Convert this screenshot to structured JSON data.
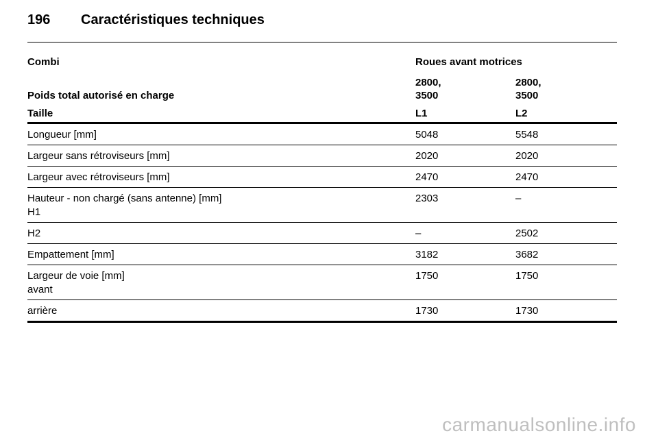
{
  "header": {
    "page_number": "196",
    "title": "Caractéristiques techniques"
  },
  "table": {
    "section": "Combi",
    "drive": "Roues avant motrices",
    "weight_label": "Poids total autorisé en charge",
    "weight_l1_line1": "2800,",
    "weight_l1_line2": "3500",
    "weight_l2_line1": "2800,",
    "weight_l2_line2": "3500",
    "size_label": "Taille",
    "size_l1": "L1",
    "size_l2": "L2",
    "rows": [
      {
        "label": "Longueur [mm]",
        "l1": "5048",
        "l2": "5548"
      },
      {
        "label": "Largeur sans rétroviseurs [mm]",
        "l1": "2020",
        "l2": "2020"
      },
      {
        "label": "Largeur avec rétroviseurs [mm]",
        "l1": "2470",
        "l2": "2470"
      },
      {
        "label": "Hauteur - non chargé (sans antenne) [mm]",
        "sublabel": "H1",
        "l1": "2303",
        "l2": "–"
      },
      {
        "label": "H2",
        "l1": "–",
        "l2": "2502"
      },
      {
        "label": "Empattement [mm]",
        "l1": "3182",
        "l2": "3682"
      },
      {
        "label": "Largeur de voie [mm]",
        "sublabel": "avant",
        "l1": "1750",
        "l2": "1750"
      },
      {
        "label": "arrière",
        "l1": "1730",
        "l2": "1730"
      }
    ]
  },
  "watermark": "carmanualsonline.info"
}
